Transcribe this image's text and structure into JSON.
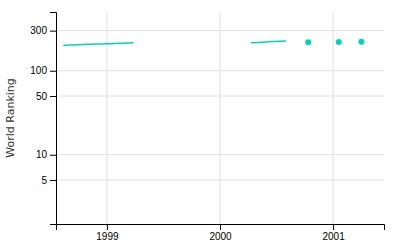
{
  "chart_data": {
    "type": "line",
    "ylabel": "World Ranking",
    "log": "y",
    "grid": true,
    "xlim": [
      1998.55,
      2001.45
    ],
    "xticks": [
      1999,
      2000,
      2001
    ],
    "ylim": [
      1.5,
      500
    ],
    "yticks": [
      5,
      10,
      50,
      100,
      300
    ],
    "series": [
      {
        "type": "line",
        "color": "#00d4b8",
        "x": [
          1998.62,
          1998.67,
          1998.71,
          1998.75,
          1998.79,
          1998.83,
          1998.87,
          1998.91,
          1998.95,
          1998.99,
          1999.03,
          1999.07,
          1999.11,
          1999.15,
          1999.19,
          1999.23
        ],
        "values": [
          200,
          202,
          203,
          204,
          205,
          206,
          207,
          208,
          208,
          209,
          210,
          211,
          212,
          213,
          214,
          215
        ]
      },
      {
        "type": "line",
        "color": "#00d4b8",
        "x": [
          2000.28,
          2000.33,
          2000.38,
          2000.43,
          2000.48,
          2000.53,
          2000.58
        ],
        "values": [
          215,
          217,
          219,
          221,
          223,
          225,
          226
        ]
      },
      {
        "type": "scatter",
        "marker": "circle",
        "color": "#00d4b8",
        "x": [
          2000.78
        ],
        "values": [
          218
        ]
      },
      {
        "type": "scatter",
        "marker": "circle",
        "color": "#00d4b8",
        "x": [
          2001.05
        ],
        "values": [
          220
        ]
      },
      {
        "type": "scatter",
        "marker": "circle",
        "color": "#00d4b8",
        "x": [
          2001.25
        ],
        "values": [
          222
        ]
      }
    ]
  }
}
